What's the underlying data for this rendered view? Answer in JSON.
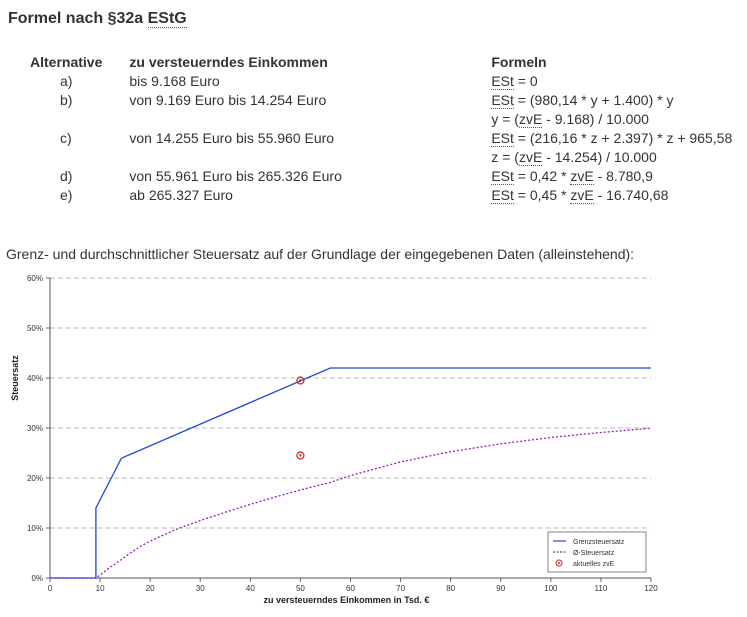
{
  "title": "Formel nach §32a EStG",
  "table": {
    "headers": [
      "Alternative",
      "zu versteuerndes Einkommen",
      "Formeln"
    ],
    "rows": [
      {
        "alt": "a)",
        "income": "bis 9.168 Euro",
        "formula": [
          "ESt = 0"
        ]
      },
      {
        "alt": "b)",
        "income": "von 9.169 Euro bis 14.254 Euro",
        "formula": [
          "ESt = (980,14 * y + 1.400) * y",
          "y = (zvE - 9.168) / 10.000"
        ]
      },
      {
        "alt": "c)",
        "income": "von 14.255 Euro bis 55.960 Euro",
        "formula": [
          "ESt = (216,16 * z + 2.397) * z + 965,58",
          "z = (zvE - 14.254) / 10.000"
        ]
      },
      {
        "alt": "d)",
        "income": "von 55.961 Euro bis 265.326 Euro",
        "formula": [
          "ESt = 0,42 * zvE - 8.780,9"
        ]
      },
      {
        "alt": "e)",
        "income": "ab 265.327 Euro",
        "formula": [
          "ESt = 0,45 * zvE - 16.740,68"
        ]
      }
    ]
  },
  "chart_title": "Grenz- und durchschnittlicher Steuersatz auf der Grundlage der eingegebenen Daten (alleinstehend):",
  "chart_data": {
    "type": "line",
    "xlabel": "zu versteuerndes Einkommen in Tsd. €",
    "ylabel": "Steuersatz",
    "xlim": [
      0,
      120
    ],
    "ylim": [
      0,
      60
    ],
    "x_ticks": [
      "0",
      "10",
      "20",
      "30",
      "40",
      "50",
      "60",
      "70",
      "80",
      "90",
      "100",
      "110",
      "120"
    ],
    "y_ticks": [
      "0%",
      "10%",
      "20%",
      "30%",
      "40%",
      "50%",
      "60%"
    ],
    "grid": "horizontal-dashed",
    "legend_position": "bottom-right",
    "series": [
      {
        "name": "Grenzsteuersatz",
        "color": "#1a47d6",
        "style": "solid",
        "x": [
          0,
          9.168,
          9.168,
          14.254,
          55.96,
          120
        ],
        "y": [
          0,
          0,
          14,
          23.97,
          42,
          42
        ]
      },
      {
        "name": "Ø-Steuersatz",
        "color": "#9b1ab8",
        "style": "dotted",
        "x": [
          0,
          9.168,
          10,
          12,
          14.254,
          16,
          18,
          20,
          25,
          30,
          35,
          40,
          45,
          50,
          55,
          55.96,
          60,
          70,
          80,
          90,
          100,
          110,
          120
        ],
        "y": [
          0,
          0,
          0.6,
          2.15,
          3.69,
          4.98,
          6.28,
          7.39,
          9.66,
          11.49,
          13.14,
          14.71,
          16.21,
          17.6,
          18.89,
          19.13,
          20.47,
          23.23,
          25.26,
          26.84,
          28.1,
          29.11,
          29.96
        ]
      },
      {
        "name": "aktuelles zvE",
        "color": "#cc2222",
        "style": "marker",
        "x": [
          50,
          50
        ],
        "y": [
          39.5,
          24.5
        ]
      }
    ]
  }
}
